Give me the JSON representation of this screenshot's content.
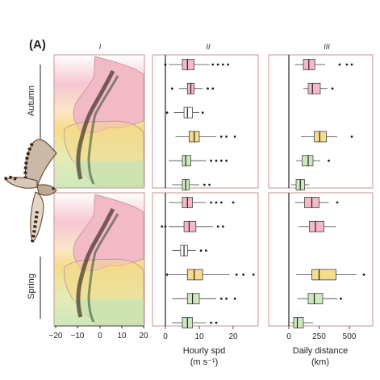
{
  "panel_label": "(A)",
  "columns": [
    "I",
    "II",
    "III"
  ],
  "rows": [
    "Autumn",
    "Spring"
  ],
  "map_axis": {
    "ticks": [
      "−20",
      "−10",
      "0",
      "10",
      "20"
    ]
  },
  "colors": {
    "pink": "#f4b8c8",
    "yellow": "#f6dc8c",
    "green": "#cde8bd",
    "white": "#ffffff",
    "frame": "#c69494",
    "tracks": "#33241d"
  },
  "chart_data": [
    {
      "type": "box",
      "panel": "II",
      "xlabel": "Hourly spd",
      "xunit": "(m s⁻¹)",
      "xticks": [
        "0",
        "10",
        "20"
      ],
      "xlim": [
        -3,
        28
      ],
      "reference_line": 0,
      "groups": [
        {
          "season": "Autumn",
          "boxes": [
            {
              "fill": "pink",
              "q1": 5,
              "median": 6.5,
              "q3": 8.5,
              "whisker_low": 1,
              "whisker_high": 13,
              "outliers": [
                0,
                14,
                15.5,
                17,
                18.5
              ]
            },
            {
              "fill": "pink",
              "q1": 6.5,
              "median": 7.5,
              "q3": 8.5,
              "whisker_low": 4,
              "whisker_high": 11,
              "outliers": [
                2,
                12.5,
                14
              ]
            },
            {
              "fill": "white",
              "q1": 5.5,
              "median": 6.5,
              "q3": 8,
              "whisker_low": 2.5,
              "whisker_high": 10,
              "outliers": [
                0.5,
                11
              ]
            },
            {
              "fill": "yellow",
              "q1": 7,
              "median": 8.5,
              "q3": 10,
              "whisker_low": 3,
              "whisker_high": 15,
              "outliers": [
                16.5,
                18,
                20.5
              ]
            },
            {
              "fill": "green",
              "q1": 5,
              "median": 6,
              "q3": 7.5,
              "whisker_low": 1,
              "whisker_high": 12,
              "outliers": [
                13.5,
                15,
                16.5,
                18
              ]
            },
            {
              "fill": "green",
              "q1": 5,
              "median": 6,
              "q3": 7,
              "whisker_low": 2,
              "whisker_high": 10,
              "outliers": [
                11.5,
                13
              ]
            }
          ]
        },
        {
          "season": "Spring",
          "boxes": [
            {
              "fill": "pink",
              "q1": 5,
              "median": 6.5,
              "q3": 8,
              "whisker_low": 1,
              "whisker_high": 12,
              "outliers": [
                13.5,
                15,
                16.5,
                20
              ]
            },
            {
              "fill": "pink",
              "q1": 5.5,
              "median": 7,
              "q3": 9,
              "whisker_low": 1,
              "whisker_high": 14,
              "outliers": [
                -1,
                0,
                15.5,
                17
              ]
            },
            {
              "fill": "white",
              "q1": 4.5,
              "median": 5.5,
              "q3": 6.5,
              "whisker_low": 2,
              "whisker_high": 9,
              "outliers": [
                10.5,
                12
              ]
            },
            {
              "fill": "yellow",
              "q1": 6.5,
              "median": 8.5,
              "q3": 11,
              "whisker_low": 1,
              "whisker_high": 19,
              "outliers": [
                0.5,
                21,
                23,
                26
              ]
            },
            {
              "fill": "green",
              "q1": 6.5,
              "median": 8,
              "q3": 10,
              "whisker_low": 2,
              "whisker_high": 15,
              "outliers": [
                16.5,
                18,
                20.5
              ]
            },
            {
              "fill": "green",
              "q1": 5,
              "median": 6.5,
              "q3": 8,
              "whisker_low": 2,
              "whisker_high": 12,
              "outliers": [
                13.5,
                15
              ]
            }
          ]
        }
      ]
    },
    {
      "type": "box",
      "panel": "III",
      "xlabel": "Daily distance",
      "xunit": "(km)",
      "xticks": [
        "0",
        "250",
        "500"
      ],
      "xlim": [
        -80,
        680
      ],
      "reference_line": 0,
      "groups": [
        {
          "season": "Autumn",
          "boxes": [
            {
              "fill": "pink",
              "q1": 120,
              "median": 165,
              "q3": 215,
              "whisker_low": 50,
              "whisker_high": 300,
              "outliers": [
                420,
                480,
                520
              ]
            },
            {
              "fill": "pink",
              "q1": 160,
              "median": 195,
              "q3": 260,
              "whisker_low": 120,
              "whisker_high": 320,
              "outliers": [
                360
              ]
            },
            null,
            {
              "fill": "yellow",
              "q1": 210,
              "median": 255,
              "q3": 310,
              "whisker_low": 100,
              "whisker_high": 400,
              "outliers": [
                520
              ]
            },
            {
              "fill": "green",
              "q1": 110,
              "median": 160,
              "q3": 200,
              "whisker_low": 60,
              "whisker_high": 260,
              "outliers": [
                330
              ]
            },
            {
              "fill": "green",
              "q1": 60,
              "median": 95,
              "q3": 130,
              "whisker_low": 20,
              "whisker_high": 170,
              "outliers": []
            }
          ]
        },
        {
          "season": "Spring",
          "boxes": [
            {
              "fill": "pink",
              "q1": 130,
              "median": 190,
              "q3": 250,
              "whisker_low": 50,
              "whisker_high": 330,
              "outliers": [
                400
              ]
            },
            {
              "fill": "pink",
              "q1": 170,
              "median": 220,
              "q3": 290,
              "whisker_low": 80,
              "whisker_high": 390,
              "outliers": []
            },
            null,
            {
              "fill": "yellow",
              "q1": 190,
              "median": 250,
              "q3": 390,
              "whisker_low": 60,
              "whisker_high": 560,
              "outliers": [
                620
              ]
            },
            {
              "fill": "green",
              "q1": 160,
              "median": 210,
              "q3": 280,
              "whisker_low": 70,
              "whisker_high": 400,
              "outliers": [
                430
              ]
            },
            {
              "fill": "green",
              "q1": 40,
              "median": 70,
              "q3": 120,
              "whisker_low": 15,
              "whisker_high": 200,
              "outliers": []
            }
          ]
        }
      ]
    }
  ]
}
